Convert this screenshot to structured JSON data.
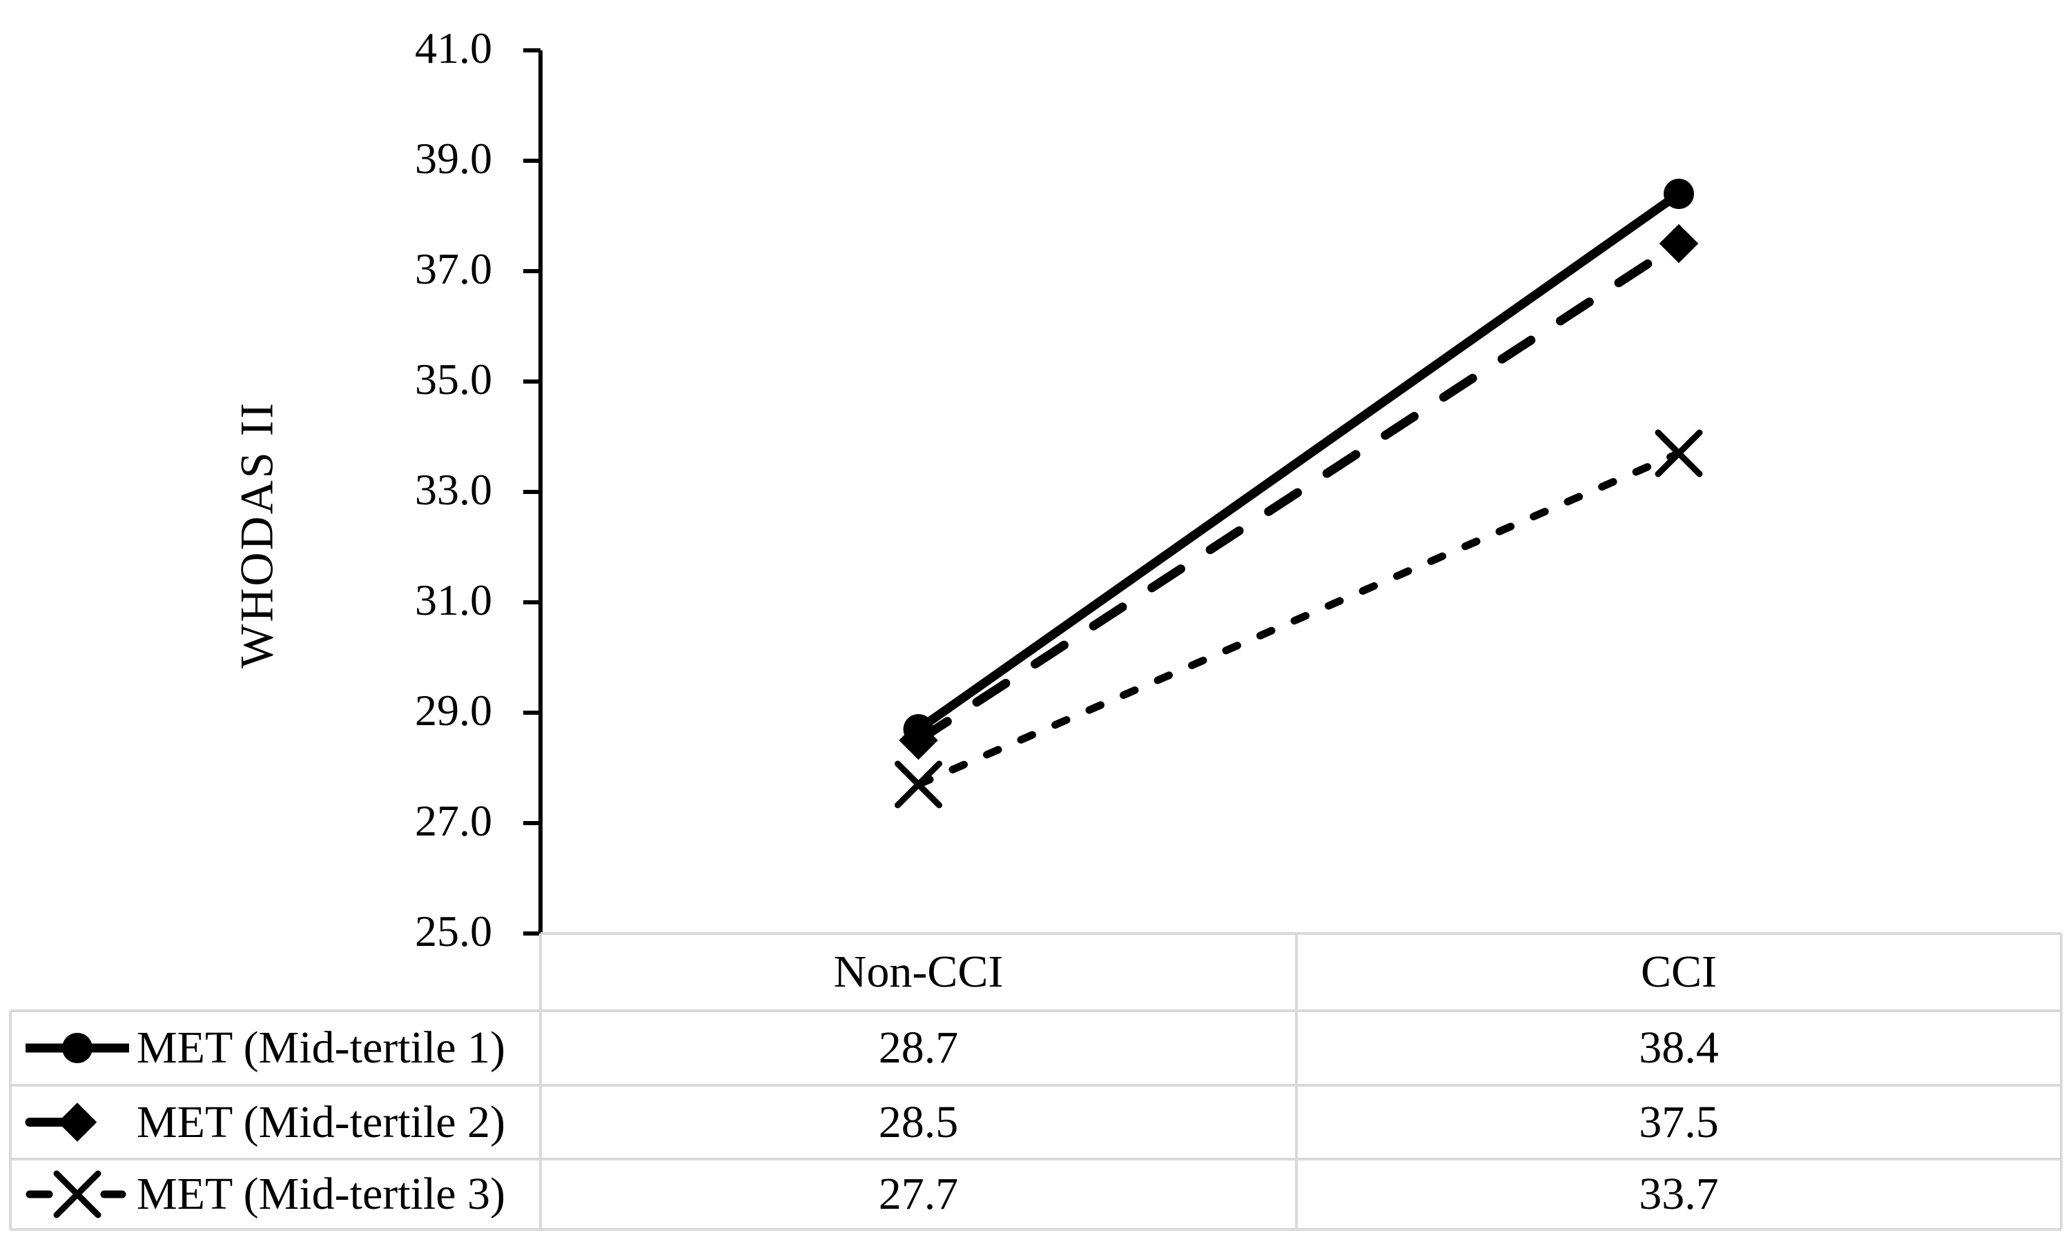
{
  "chart_data": {
    "type": "line",
    "categories": [
      "Non-CCI",
      "CCI"
    ],
    "series": [
      {
        "name": "MET (Mid-tertile 1)",
        "values": [
          28.7,
          38.4
        ],
        "line_style": "solid",
        "marker": "circle"
      },
      {
        "name": "MET (Mid-tertile 2)",
        "values": [
          28.5,
          37.5
        ],
        "line_style": "long-dash",
        "marker": "diamond"
      },
      {
        "name": "MET (Mid-tertile 3)",
        "values": [
          27.7,
          33.7
        ],
        "line_style": "short-dash",
        "marker": "x"
      }
    ],
    "title": "",
    "xlabel": "",
    "ylabel": "WHODAS II",
    "ylim": [
      25.0,
      41.0
    ],
    "ytick_step": 2.0,
    "yticks": [
      "41.0",
      "39.0",
      "37.0",
      "35.0",
      "33.0",
      "31.0",
      "29.0",
      "27.0",
      "25.0"
    ],
    "grid": false,
    "legend_position": "data-table-left-column",
    "colors": {
      "series": "#000000",
      "text": "#000000",
      "axis": "#000000",
      "table_border": "#d9d9d9",
      "background": "#ffffff"
    }
  },
  "data_table": {
    "columns": [
      "Non-CCI",
      "CCI"
    ],
    "rows": [
      {
        "label": "MET (Mid-tertile 1)",
        "values": [
          "28.7",
          "38.4"
        ]
      },
      {
        "label": "MET (Mid-tertile 2)",
        "values": [
          "28.5",
          "37.5"
        ]
      },
      {
        "label": "MET (Mid-tertile 3)",
        "values": [
          "27.7",
          "33.7"
        ]
      }
    ]
  }
}
